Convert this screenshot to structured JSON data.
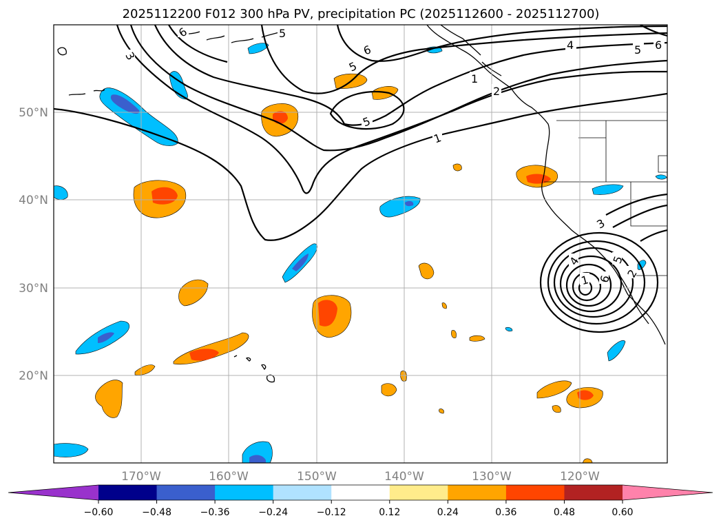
{
  "chart_data": {
    "type": "map",
    "title": "2025112200 F012 300 hPa PV, precipitation PC (2025112600 - 2025112700)",
    "x_ticks": [
      "170°W",
      "160°W",
      "150°W",
      "140°W",
      "130°W",
      "120°W"
    ],
    "y_ticks": [
      "50°N",
      "40°N",
      "30°N",
      "20°N"
    ],
    "lon_range": [
      -180,
      -110
    ],
    "lat_range": [
      10,
      60
    ],
    "colorbar": {
      "ticks": [
        "−0.60",
        "−0.48",
        "−0.36",
        "−0.24",
        "−0.12",
        "0.12",
        "0.24",
        "0.36",
        "0.48",
        "0.60"
      ],
      "colors": [
        "#9932cc",
        "#00008b",
        "#3a5fcd",
        "#00bfff",
        "#b0e2ff",
        "#ffffff",
        "#ffec8b",
        "#ffa500",
        "#ff4500",
        "#b22222",
        "#ff82ab"
      ]
    },
    "contour_labels": [
      "6",
      "3",
      "5",
      "6",
      "5",
      "5",
      "4",
      "5",
      "6",
      "1",
      "1",
      "2",
      "3",
      "4",
      "5",
      "6",
      "1",
      "2"
    ]
  }
}
